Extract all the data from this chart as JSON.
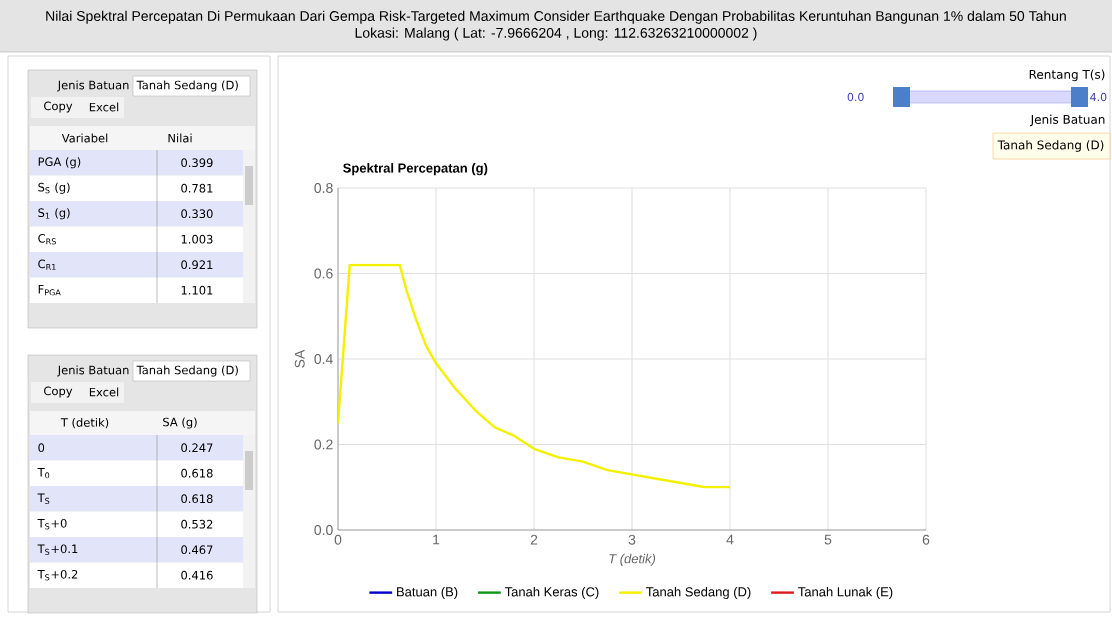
{
  "chart_data": [
    {
      "type": "other",
      "title": "Nilai Spektral Percepatan Di Permukaan Dari Gempa Risk-Targeted Maximum Consider Earthquake Dengan Probabilitas Keruntuhan Bangunan 1% dalam 50 Tahun",
      "subtitle": "Lokasi: Malang ( Lat: -7.9666204 , Long: 112.63263210000002 )",
      "annotations": [
        "Rentang T(s)",
        "0.0",
        "4.0",
        "Jenis Batuan",
        "Tanah Sedang (D)"
      ]
    },
    {
      "type": "other",
      "annotations": [
        "Jenis Batuan",
        "Tanah Sedang (D)",
        "Copy",
        "Excel",
        "Variabel",
        "Nilai",
        "PGA (g)",
        "0.399",
        "S$_{S}$ (g)",
        "0.781",
        "S$_{1}$ (g)",
        "0.330",
        "C$_{RS}$",
        "1.003",
        "C$_{R1}$",
        "0.921",
        "F$_{PGA}$",
        "1.101"
      ]
    },
    {
      "type": "other",
      "annotations": [
        "Jenis Batuan",
        "Tanah Sedang (D)",
        "Copy",
        "Excel",
        "T (detik)",
        "SA (g)",
        "0",
        "0.247",
        "T$_{0}$",
        "0.618",
        "T$_{S}$",
        "0.618",
        "T$_{S}$+0",
        "0.532",
        "T$_{S}$+0.1",
        "0.467",
        "T$_{S}$+0.2",
        "0.416"
      ]
    },
    {
      "type": "line",
      "title": "Spektral Percepatan (g)",
      "xlabel": "T (detik)",
      "ylabel": "SA",
      "xlim": [
        0,
        6
      ],
      "xticks": [
        0,
        1,
        2,
        3,
        4,
        5,
        6
      ],
      "ylim": [
        0,
        0.8
      ],
      "yticks": [
        {
          "value": 0,
          "label": "0.0"
        },
        {
          "value": 0.2,
          "label": "0.2"
        },
        {
          "value": 0.4,
          "label": "0.4"
        },
        {
          "value": 0.6,
          "label": "0.6"
        },
        {
          "value": 0.8,
          "label": "0.8"
        }
      ],
      "grid": true,
      "legend": "bottom",
      "series": [
        {
          "name": "Batuan (B)",
          "color": "#0000cc"
        },
        {
          "name": "Tanah Keras (C)",
          "color": "#109618"
        },
        {
          "name": "Tanah Sedang (D)",
          "color": "#f5f000",
          "x": [
            0,
            0.12,
            0.63,
            0.7,
            0.8,
            0.9,
            1.0,
            1.2,
            1.4,
            1.6,
            1.8,
            2.0,
            2.25,
            2.5,
            2.75,
            3.0,
            3.25,
            3.5,
            3.75,
            4.0
          ],
          "values": [
            0.25,
            0.62,
            0.62,
            0.56,
            0.49,
            0.43,
            0.39,
            0.33,
            0.28,
            0.24,
            0.22,
            0.19,
            0.17,
            0.16,
            0.14,
            0.13,
            0.12,
            0.11,
            0.1,
            0.1
          ]
        },
        {
          "name": "Tanah Lunak (E)",
          "color": "#dc1c1c"
        }
      ]
    }
  ]
}
